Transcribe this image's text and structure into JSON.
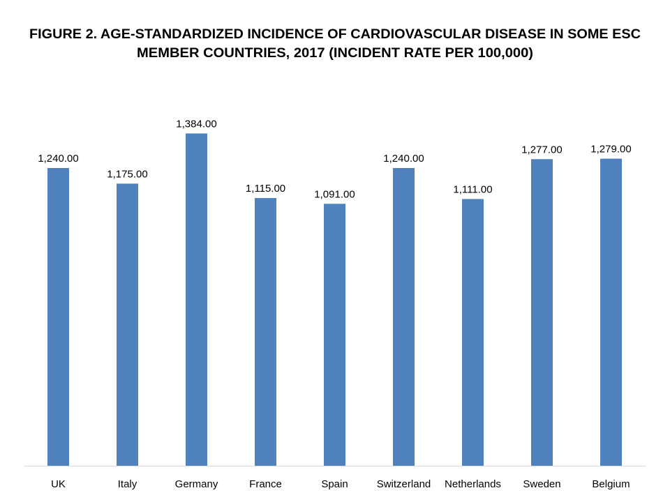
{
  "chart_data": {
    "type": "bar",
    "title_lines": [
      "FIGURE 2.  AGE-STANDARDIZED INCIDENCE OF CARDIOVASCULAR DISEASE IN SOME ESC",
      "MEMBER COUNTRIES, 2017 (INCIDENT RATE PER 100,000)"
    ],
    "categories": [
      "UK",
      "Italy",
      "Germany",
      "France",
      "Spain",
      "Switzerland",
      "Netherlands",
      "Sweden",
      "Belgium"
    ],
    "values": [
      1240,
      1175,
      1384,
      1115,
      1091,
      1240,
      1111,
      1277,
      1279
    ],
    "data_labels": [
      "1,240.00",
      "1,175.00",
      "1,384.00",
      "1,115.00",
      "1,091.00",
      "1,240.00",
      "1,111.00",
      "1,277.00",
      "1,279.00"
    ],
    "xlabel": "",
    "ylabel": "",
    "ylim": [
      0,
      1450
    ],
    "grid": false,
    "legend": "none",
    "bar_color": "#4f81bd",
    "axis_color": "#d9d9d9"
  }
}
